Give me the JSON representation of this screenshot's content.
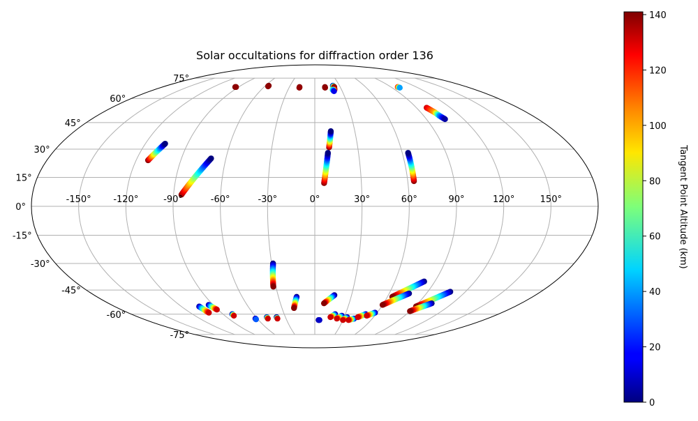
{
  "chart_data": {
    "type": "scatter",
    "projection": "Mollweide",
    "title": "Solar occultations for diffraction order 136",
    "x_ticks": [
      "-150°",
      "-120°",
      "-90°",
      "-60°",
      "-30°",
      "0°",
      "30°",
      "60°",
      "90°",
      "120°",
      "150°"
    ],
    "y_ticks": [
      "75°",
      "60°",
      "45°",
      "30°",
      "15°",
      "0°",
      "-15°",
      "-30°",
      "-45°",
      "-60°",
      "-75°"
    ],
    "colorbar": {
      "label": "Tangent Point Altitude (km)",
      "colormap": "jet",
      "range": [
        0,
        141
      ],
      "ticks": [
        "0",
        "20",
        "40",
        "60",
        "80",
        "100",
        "120",
        "140"
      ]
    },
    "grid": true,
    "series": [
      {
        "points": [
          [
            -94,
            68,
            141
          ],
          [
            -93,
            68,
            139
          ]
        ]
      },
      {
        "points": [
          [
            -56,
            69,
            141
          ],
          [
            -56,
            68.5,
            139
          ]
        ]
      },
      {
        "points": [
          [
            -18,
            68,
            141
          ],
          [
            -18,
            67.5,
            138
          ]
        ]
      },
      {
        "points": [
          [
            12,
            68,
            141
          ],
          [
            12,
            67.5,
            139
          ]
        ]
      },
      {
        "points": [
          [
            22,
            69,
            5
          ],
          [
            23,
            68,
            141
          ],
          [
            22,
            66,
            130
          ],
          [
            20,
            66,
            60
          ],
          [
            21,
            65,
            15
          ]
        ]
      },
      {
        "points": [
          [
            98,
            68,
            120
          ],
          [
            99,
            67.5,
            40
          ]
        ]
      },
      {
        "points": [
          [
            99,
            54,
            130
          ],
          [
            102,
            51,
            100
          ],
          [
            103,
            49,
            40
          ],
          [
            105,
            47,
            5
          ]
        ]
      },
      {
        "points": [
          [
            -106,
            33,
            0
          ],
          [
            -112,
            24,
            140
          ]
        ],
        "reverse": true
      },
      {
        "points": [
          [
            -70,
            25,
            0
          ],
          [
            -85,
            6,
            140
          ]
        ],
        "reverse": true
      },
      {
        "points": [
          [
            12,
            40,
            0
          ],
          [
            10,
            31,
            140
          ]
        ],
        "reverse": true
      },
      {
        "points": [
          [
            9,
            28,
            0
          ],
          [
            6,
            12,
            140
          ]
        ],
        "reverse": true
      },
      {
        "points": [
          [
            64,
            28,
            0
          ],
          [
            64,
            13,
            140
          ]
        ],
        "reverse": true
      },
      {
        "points": [
          [
            -29,
            -30,
            0
          ],
          [
            -32,
            -43,
            140
          ]
        ]
      },
      {
        "points": [
          [
            -15,
            -49,
            0
          ],
          [
            -19,
            -56,
            140
          ]
        ]
      },
      {
        "points": [
          [
            16,
            -48,
            0
          ],
          [
            8,
            -53,
            140
          ]
        ]
      },
      {
        "points": [
          [
            -104,
            -55,
            5
          ],
          [
            -102,
            -59,
            130
          ]
        ]
      },
      {
        "points": [
          [
            -94,
            -54,
            5
          ],
          [
            -91,
            -57,
            130
          ]
        ]
      },
      {
        "points": [
          [
            -81,
            -60,
            5
          ],
          [
            -81,
            -61,
            130
          ]
        ]
      },
      {
        "points": [
          [
            -62,
            -63,
            5
          ],
          [
            -62,
            -63.5,
            30
          ]
        ]
      },
      {
        "points": [
          [
            -49,
            -62,
            5
          ],
          [
            -49,
            -63,
            130
          ]
        ]
      },
      {
        "points": [
          [
            -39,
            -62,
            5
          ],
          [
            -39,
            -63,
            130
          ]
        ]
      },
      {
        "points": [
          [
            4,
            -64,
            5
          ],
          [
            5,
            -64,
            10
          ]
        ]
      },
      {
        "points": [
          [
            20,
            -60,
            5
          ],
          [
            16,
            -62,
            130
          ]
        ]
      },
      {
        "points": [
          [
            27,
            -61,
            5
          ],
          [
            23,
            -63,
            130
          ]
        ]
      },
      {
        "points": [
          [
            33,
            -62,
            5
          ],
          [
            30,
            -64,
            130
          ]
        ]
      },
      {
        "points": [
          [
            41,
            -63,
            5
          ],
          [
            36,
            -64,
            130
          ]
        ]
      },
      {
        "points": [
          [
            50,
            -60,
            5
          ],
          [
            44,
            -62,
            130
          ]
        ]
      },
      {
        "points": [
          [
            58,
            -59,
            5
          ],
          [
            52,
            -61,
            130
          ]
        ]
      },
      {
        "points": [
          [
            82,
            -40,
            0
          ],
          [
            64,
            -49,
            140
          ]
        ]
      },
      {
        "points": [
          [
            76,
            -47,
            0
          ],
          [
            60,
            -54,
            140
          ]
        ]
      },
      {
        "points": [
          [
            108,
            -46,
            0
          ],
          [
            91,
            -55,
            140
          ]
        ]
      },
      {
        "points": [
          [
            102,
            -53,
            0
          ],
          [
            90,
            -58,
            140
          ]
        ]
      }
    ]
  }
}
